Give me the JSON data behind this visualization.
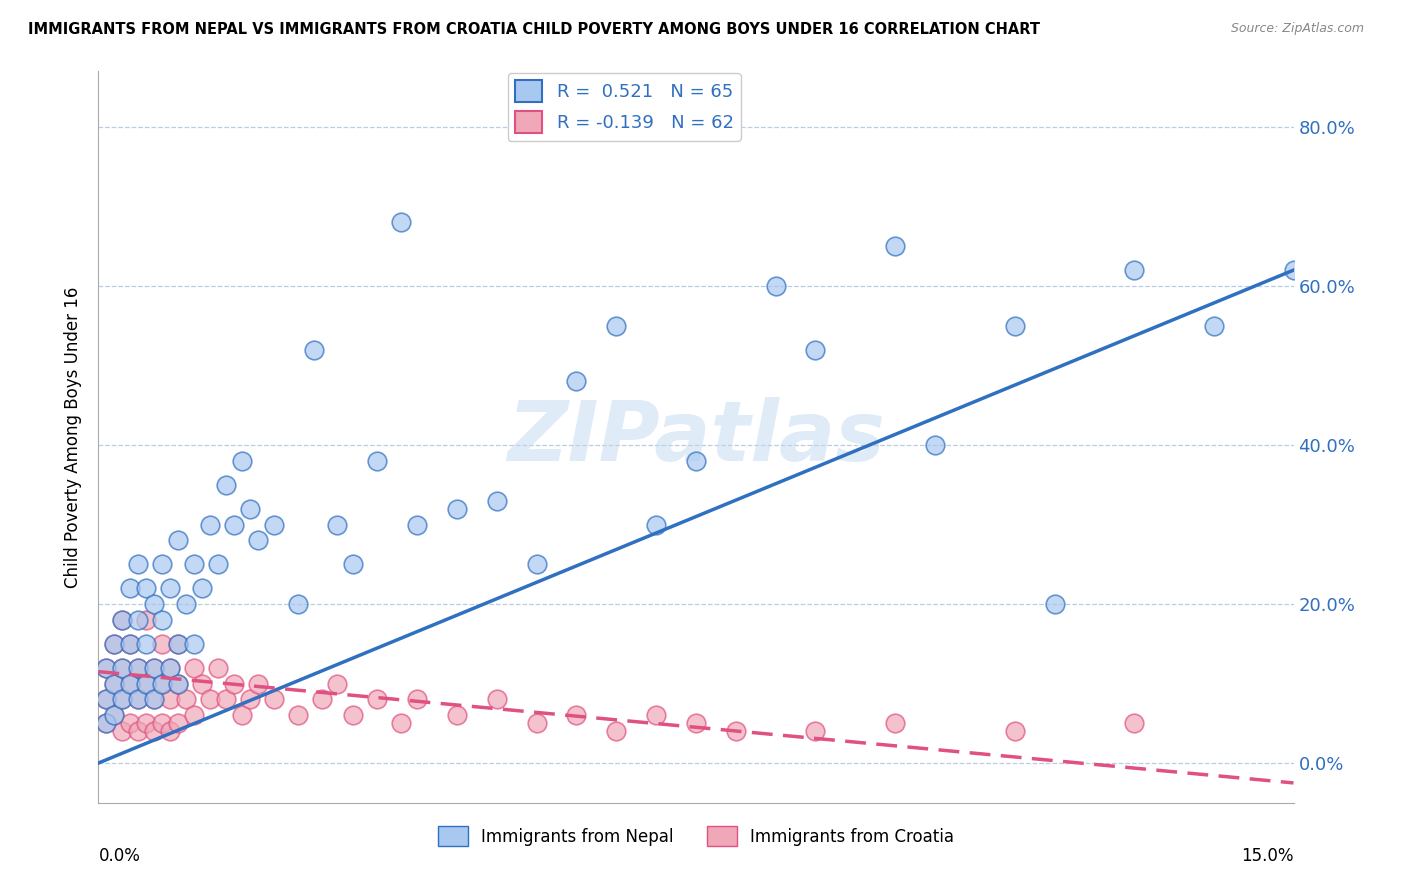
{
  "title": "IMMIGRANTS FROM NEPAL VS IMMIGRANTS FROM CROATIA CHILD POVERTY AMONG BOYS UNDER 16 CORRELATION CHART",
  "source": "Source: ZipAtlas.com",
  "ylabel": "Child Poverty Among Boys Under 16",
  "ylabel_ticks": [
    "0.0%",
    "20.0%",
    "40.0%",
    "60.0%",
    "80.0%"
  ],
  "ytick_vals": [
    0.0,
    0.2,
    0.4,
    0.6,
    0.8
  ],
  "xmin": 0.0,
  "xmax": 0.15,
  "ymin": -0.05,
  "ymax": 0.87,
  "nepal_R": 0.521,
  "nepal_N": 65,
  "croatia_R": -0.139,
  "croatia_N": 62,
  "nepal_color": "#a8c8f0",
  "croatia_color": "#f0a8b8",
  "nepal_line_color": "#3070c0",
  "croatia_line_color": "#e05080",
  "watermark": "ZIPatlas",
  "background_color": "#ffffff",
  "nepal_line_x0": 0.0,
  "nepal_line_y0": 0.0,
  "nepal_line_x1": 0.15,
  "nepal_line_y1": 0.62,
  "croatia_line_x0": 0.0,
  "croatia_line_y0": 0.115,
  "croatia_line_x1": 0.15,
  "croatia_line_y1": -0.025,
  "nepal_scatter_x": [
    0.001,
    0.001,
    0.001,
    0.002,
    0.002,
    0.002,
    0.003,
    0.003,
    0.003,
    0.004,
    0.004,
    0.004,
    0.005,
    0.005,
    0.005,
    0.005,
    0.006,
    0.006,
    0.006,
    0.007,
    0.007,
    0.007,
    0.008,
    0.008,
    0.008,
    0.009,
    0.009,
    0.01,
    0.01,
    0.01,
    0.011,
    0.012,
    0.012,
    0.013,
    0.014,
    0.015,
    0.016,
    0.017,
    0.018,
    0.019,
    0.02,
    0.022,
    0.025,
    0.027,
    0.03,
    0.032,
    0.035,
    0.038,
    0.04,
    0.045,
    0.05,
    0.055,
    0.06,
    0.065,
    0.07,
    0.075,
    0.085,
    0.09,
    0.1,
    0.105,
    0.115,
    0.12,
    0.13,
    0.14,
    0.15
  ],
  "nepal_scatter_y": [
    0.05,
    0.08,
    0.12,
    0.06,
    0.1,
    0.15,
    0.08,
    0.12,
    0.18,
    0.1,
    0.15,
    0.22,
    0.08,
    0.12,
    0.18,
    0.25,
    0.1,
    0.15,
    0.22,
    0.08,
    0.12,
    0.2,
    0.1,
    0.18,
    0.25,
    0.12,
    0.22,
    0.1,
    0.15,
    0.28,
    0.2,
    0.15,
    0.25,
    0.22,
    0.3,
    0.25,
    0.35,
    0.3,
    0.38,
    0.32,
    0.28,
    0.3,
    0.2,
    0.52,
    0.3,
    0.25,
    0.38,
    0.68,
    0.3,
    0.32,
    0.33,
    0.25,
    0.48,
    0.55,
    0.3,
    0.38,
    0.6,
    0.52,
    0.65,
    0.4,
    0.55,
    0.2,
    0.62,
    0.55,
    0.62
  ],
  "croatia_scatter_x": [
    0.001,
    0.001,
    0.001,
    0.002,
    0.002,
    0.002,
    0.003,
    0.003,
    0.003,
    0.003,
    0.004,
    0.004,
    0.004,
    0.005,
    0.005,
    0.005,
    0.006,
    0.006,
    0.006,
    0.007,
    0.007,
    0.007,
    0.008,
    0.008,
    0.008,
    0.009,
    0.009,
    0.009,
    0.01,
    0.01,
    0.01,
    0.011,
    0.012,
    0.012,
    0.013,
    0.014,
    0.015,
    0.016,
    0.017,
    0.018,
    0.019,
    0.02,
    0.022,
    0.025,
    0.028,
    0.03,
    0.032,
    0.035,
    0.038,
    0.04,
    0.045,
    0.05,
    0.055,
    0.06,
    0.065,
    0.07,
    0.075,
    0.08,
    0.09,
    0.1,
    0.115,
    0.13
  ],
  "croatia_scatter_y": [
    0.05,
    0.08,
    0.12,
    0.06,
    0.1,
    0.15,
    0.04,
    0.08,
    0.12,
    0.18,
    0.05,
    0.1,
    0.15,
    0.04,
    0.08,
    0.12,
    0.05,
    0.1,
    0.18,
    0.04,
    0.08,
    0.12,
    0.05,
    0.1,
    0.15,
    0.04,
    0.08,
    0.12,
    0.05,
    0.1,
    0.15,
    0.08,
    0.06,
    0.12,
    0.1,
    0.08,
    0.12,
    0.08,
    0.1,
    0.06,
    0.08,
    0.1,
    0.08,
    0.06,
    0.08,
    0.1,
    0.06,
    0.08,
    0.05,
    0.08,
    0.06,
    0.08,
    0.05,
    0.06,
    0.04,
    0.06,
    0.05,
    0.04,
    0.04,
    0.05,
    0.04,
    0.05
  ]
}
